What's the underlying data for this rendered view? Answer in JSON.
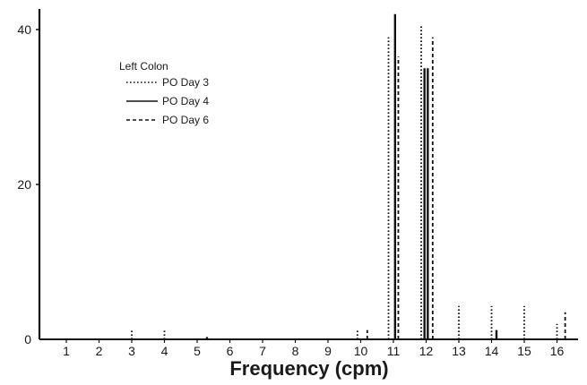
{
  "chart_data": {
    "type": "bar",
    "title": "",
    "xlabel": "Frequency (cpm)",
    "ylabel": "",
    "xlim": [
      0,
      16.5
    ],
    "ylim": [
      0,
      42
    ],
    "x_ticks": [
      1,
      2,
      3,
      4,
      5,
      6,
      7,
      8,
      9,
      10,
      11,
      12,
      13,
      14,
      15,
      16
    ],
    "y_ticks": [
      0,
      20,
      40
    ],
    "legend": {
      "title": "Left Colon",
      "position": "top-left"
    },
    "series": [
      {
        "name": "PO Day 3",
        "line_style": "dotted",
        "points": [
          {
            "x": 3,
            "y": 1.2
          },
          {
            "x": 4,
            "y": 1.2
          },
          {
            "x": 9.9,
            "y": 1.2
          },
          {
            "x": 10.85,
            "y": 39
          },
          {
            "x": 11.85,
            "y": 40.5
          },
          {
            "x": 13,
            "y": 4.3
          },
          {
            "x": 14,
            "y": 4.3
          },
          {
            "x": 15,
            "y": 4.3
          },
          {
            "x": 16,
            "y": 2.0
          }
        ]
      },
      {
        "name": "PO Day 4",
        "line_style": "solid",
        "points": [
          {
            "x": 5.3,
            "y": 0.3
          },
          {
            "x": 11.05,
            "y": 42
          },
          {
            "x": 11.95,
            "y": 35
          },
          {
            "x": 12.05,
            "y": 35
          },
          {
            "x": 14.15,
            "y": 1.2
          }
        ]
      },
      {
        "name": "PO Day 6",
        "line_style": "dashed",
        "points": [
          {
            "x": 10.2,
            "y": 1.2
          },
          {
            "x": 11.15,
            "y": 36.5
          },
          {
            "x": 12.2,
            "y": 39
          },
          {
            "x": 16.25,
            "y": 3.5
          }
        ]
      }
    ]
  }
}
